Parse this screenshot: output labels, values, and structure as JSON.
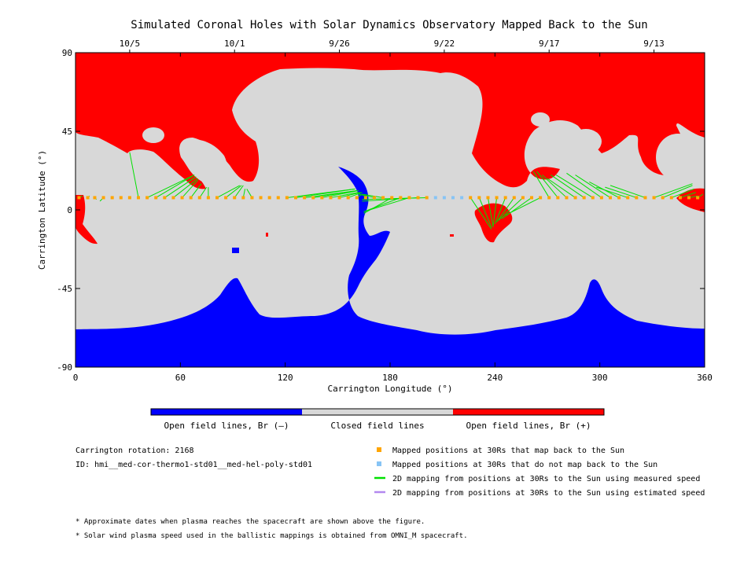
{
  "chart_data": {
    "type": "heatmap",
    "title": "Simulated Coronal Holes with Solar Dynamics Observatory Mapped Back to the Sun",
    "xlabel": "Carrington Longitude (°)",
    "ylabel": "Carrington Latitude (°)",
    "xlim": [
      0,
      360
    ],
    "ylim": [
      -90,
      90
    ],
    "x_ticks": [
      "0",
      "60",
      "120",
      "180",
      "240",
      "300",
      "360"
    ],
    "y_ticks": [
      "90",
      "45",
      "0",
      "-45",
      "-90"
    ],
    "top_axis": {
      "dates": [
        {
          "label": "10/5",
          "lon": 31
        },
        {
          "label": "10/1",
          "lon": 91
        },
        {
          "label": "9/26",
          "lon": 151
        },
        {
          "label": "9/22",
          "lon": 211
        },
        {
          "label": "9/17",
          "lon": 271
        },
        {
          "label": "9/13",
          "lon": 331
        }
      ]
    },
    "colors": {
      "open_negative": "#0000ff",
      "closed": "#d8d8d8",
      "open_positive": "#ff0000",
      "mapped": "#ffa500",
      "not_mapped": "#87c4f5",
      "measured_line": "#00e000",
      "estimated_line": "#b388ef"
    },
    "colorbar": {
      "labels": [
        "Open field lines, Br (–)",
        "Closed field lines",
        "Open field lines, Br (+)"
      ]
    },
    "series": [
      {
        "name": "Mapped positions at 30Rs that map back to the Sun",
        "points": [
          [
            2,
            7
          ],
          [
            7,
            7
          ],
          [
            11,
            7
          ],
          [
            16,
            7
          ],
          [
            21,
            7
          ],
          [
            26,
            7
          ],
          [
            31,
            7
          ],
          [
            36,
            7
          ],
          [
            41,
            7
          ],
          [
            46,
            7
          ],
          [
            51,
            7
          ],
          [
            56,
            7
          ],
          [
            61,
            7
          ],
          [
            66,
            7
          ],
          [
            71,
            7
          ],
          [
            76,
            7
          ],
          [
            81,
            7
          ],
          [
            86,
            7
          ],
          [
            91,
            7
          ],
          [
            96,
            7
          ],
          [
            101,
            7
          ],
          [
            106,
            7
          ],
          [
            111,
            7
          ],
          [
            116,
            7
          ],
          [
            121,
            7
          ],
          [
            126,
            7
          ],
          [
            131,
            7
          ],
          [
            136,
            7
          ],
          [
            141,
            7
          ],
          [
            146,
            7
          ],
          [
            151,
            7
          ],
          [
            156,
            7
          ],
          [
            161,
            7
          ],
          [
            166,
            7
          ],
          [
            171,
            7
          ],
          [
            176,
            7
          ],
          [
            181,
            7
          ],
          [
            186,
            7
          ],
          [
            191,
            7
          ],
          [
            196,
            7
          ],
          [
            201,
            7
          ],
          [
            226,
            7
          ],
          [
            231,
            7
          ],
          [
            236,
            7
          ],
          [
            241,
            7
          ],
          [
            246,
            7
          ],
          [
            251,
            7
          ],
          [
            256,
            7
          ],
          [
            261,
            7
          ],
          [
            266,
            7
          ],
          [
            271,
            7
          ],
          [
            276,
            7
          ],
          [
            281,
            7
          ],
          [
            286,
            7
          ],
          [
            291,
            7
          ],
          [
            296,
            7
          ],
          [
            301,
            7
          ],
          [
            306,
            7
          ],
          [
            311,
            7
          ],
          [
            316,
            7
          ],
          [
            321,
            7
          ],
          [
            326,
            7
          ],
          [
            331,
            7
          ],
          [
            336,
            7
          ],
          [
            341,
            7
          ],
          [
            346,
            7
          ],
          [
            351,
            7
          ],
          [
            356,
            7
          ]
        ]
      },
      {
        "name": "Mapped positions at 30Rs that do not map back to the Sun",
        "points": [
          [
            206,
            7
          ],
          [
            211,
            7
          ],
          [
            216,
            7
          ],
          [
            221,
            7
          ]
        ]
      }
    ],
    "mapping_lines": [
      [
        [
          2,
          7
        ],
        [
          4,
          8
        ]
      ],
      [
        [
          7,
          7
        ],
        [
          8,
          8
        ]
      ],
      [
        [
          11,
          7
        ],
        [
          12,
          6
        ]
      ],
      [
        [
          16,
          7
        ],
        [
          14,
          5
        ]
      ],
      [
        [
          36,
          7
        ],
        [
          31,
          33
        ]
      ],
      [
        [
          41,
          7
        ],
        [
          68,
          20
        ]
      ],
      [
        [
          46,
          7
        ],
        [
          68,
          20
        ]
      ],
      [
        [
          51,
          7
        ],
        [
          69,
          19
        ]
      ],
      [
        [
          56,
          7
        ],
        [
          70,
          18
        ]
      ],
      [
        [
          61,
          7
        ],
        [
          70,
          17
        ]
      ],
      [
        [
          66,
          7
        ],
        [
          72,
          15
        ]
      ],
      [
        [
          71,
          7
        ],
        [
          75,
          13
        ]
      ],
      [
        [
          76,
          7
        ],
        [
          76,
          13
        ]
      ],
      [
        [
          81,
          7
        ],
        [
          94,
          14
        ]
      ],
      [
        [
          86,
          7
        ],
        [
          95,
          14
        ]
      ],
      [
        [
          91,
          7
        ],
        [
          96,
          14
        ]
      ],
      [
        [
          96,
          7
        ],
        [
          97,
          12
        ]
      ],
      [
        [
          101,
          7
        ],
        [
          98,
          12
        ]
      ],
      [
        [
          121,
          7
        ],
        [
          160,
          12
        ]
      ],
      [
        [
          126,
          7
        ],
        [
          160,
          12
        ]
      ],
      [
        [
          131,
          7
        ],
        [
          161,
          11
        ]
      ],
      [
        [
          136,
          7
        ],
        [
          161,
          11
        ]
      ],
      [
        [
          141,
          7
        ],
        [
          162,
          11
        ]
      ],
      [
        [
          146,
          7
        ],
        [
          162,
          10
        ]
      ],
      [
        [
          151,
          7
        ],
        [
          163,
          10
        ]
      ],
      [
        [
          156,
          7
        ],
        [
          164,
          10
        ]
      ],
      [
        [
          161,
          7
        ],
        [
          164,
          9
        ]
      ],
      [
        [
          166,
          7
        ],
        [
          165,
          8
        ]
      ],
      [
        [
          171,
          7
        ],
        [
          162,
          9
        ]
      ],
      [
        [
          176,
          7
        ],
        [
          164,
          9
        ]
      ],
      [
        [
          181,
          7
        ],
        [
          165,
          -2
        ]
      ],
      [
        [
          186,
          7
        ],
        [
          165,
          -1
        ]
      ],
      [
        [
          191,
          7
        ],
        [
          165,
          -1
        ]
      ],
      [
        [
          196,
          7
        ],
        [
          164,
          5
        ]
      ],
      [
        [
          201,
          7
        ],
        [
          164,
          6
        ]
      ],
      [
        [
          226,
          7
        ],
        [
          238,
          -11
        ]
      ],
      [
        [
          231,
          7
        ],
        [
          238,
          -10
        ]
      ],
      [
        [
          236,
          7
        ],
        [
          239,
          -10
        ]
      ],
      [
        [
          241,
          7
        ],
        [
          239,
          -9
        ]
      ],
      [
        [
          246,
          7
        ],
        [
          240,
          -8
        ]
      ],
      [
        [
          251,
          7
        ],
        [
          241,
          -7
        ]
      ],
      [
        [
          256,
          7
        ],
        [
          242,
          -6
        ]
      ],
      [
        [
          261,
          7
        ],
        [
          244,
          -5
        ]
      ],
      [
        [
          266,
          7
        ],
        [
          246,
          -3
        ]
      ],
      [
        [
          271,
          7
        ],
        [
          262,
          22
        ]
      ],
      [
        [
          276,
          7
        ],
        [
          264,
          22
        ]
      ],
      [
        [
          281,
          7
        ],
        [
          267,
          20
        ]
      ],
      [
        [
          286,
          7
        ],
        [
          270,
          18
        ]
      ],
      [
        [
          291,
          7
        ],
        [
          272,
          20
        ]
      ],
      [
        [
          296,
          7
        ],
        [
          275,
          20
        ]
      ],
      [
        [
          301,
          7
        ],
        [
          281,
          21
        ]
      ],
      [
        [
          306,
          7
        ],
        [
          286,
          20
        ]
      ],
      [
        [
          311,
          7
        ],
        [
          294,
          16
        ]
      ],
      [
        [
          316,
          7
        ],
        [
          298,
          13
        ]
      ],
      [
        [
          321,
          7
        ],
        [
          303,
          13
        ]
      ],
      [
        [
          326,
          7
        ],
        [
          306,
          14
        ]
      ],
      [
        [
          331,
          7
        ],
        [
          353,
          15
        ]
      ],
      [
        [
          336,
          7
        ],
        [
          353,
          14
        ]
      ],
      [
        [
          341,
          7
        ],
        [
          354,
          12
        ]
      ],
      [
        [
          346,
          7
        ],
        [
          355,
          10
        ]
      ],
      [
        [
          351,
          7
        ],
        [
          356,
          8
        ]
      ],
      [
        [
          356,
          7
        ],
        [
          359,
          9
        ]
      ]
    ]
  },
  "info": {
    "rotation": "Carrington rotation: 2168",
    "id": "ID: hmi__med-cor-thermo1-std01__med-hel-poly-std01"
  },
  "legend": [
    {
      "symbol": "square",
      "color": "#ffa500",
      "label": "Mapped positions at 30Rs that map back to the Sun"
    },
    {
      "symbol": "square",
      "color": "#87c4f5",
      "label": "Mapped positions at 30Rs that do not map back to the Sun"
    },
    {
      "symbol": "line",
      "color": "#00e000",
      "label": "2D mapping from positions at 30Rs to the Sun using measured speed"
    },
    {
      "symbol": "line",
      "color": "#b388ef",
      "label": "2D mapping from positions at 30Rs to the Sun using estimated speed"
    }
  ],
  "footnotes": [
    "* Approximate dates when plasma reaches the spacecraft are shown above the figure.",
    "* Solar wind plasma speed used in the ballistic mappings is obtained from OMNI_M spacecraft."
  ]
}
